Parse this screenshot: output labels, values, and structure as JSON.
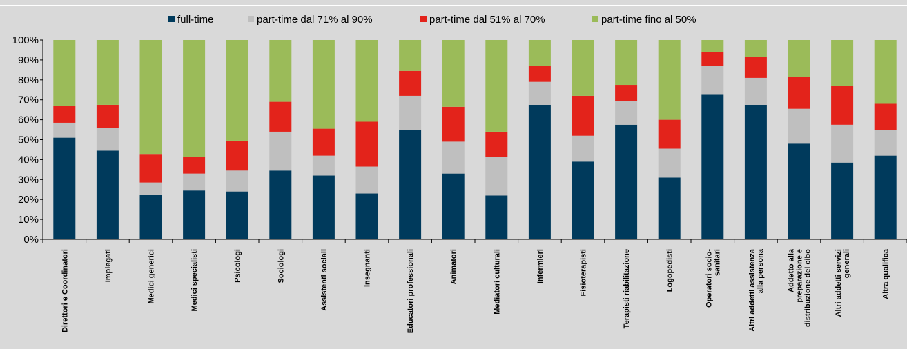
{
  "chart_data": {
    "type": "bar",
    "stacked": true,
    "orientation": "vertical",
    "ylim": [
      0,
      100
    ],
    "y_ticks": [
      "0%",
      "10%",
      "20%",
      "30%",
      "40%",
      "50%",
      "60%",
      "70%",
      "80%",
      "90%",
      "100%"
    ],
    "grid": false,
    "legend_position": "top",
    "categories": [
      [
        "Direttori e Coordinatori"
      ],
      [
        "Impiegati"
      ],
      [
        "Medici generici"
      ],
      [
        "Medici specialisti"
      ],
      [
        "Psicologi"
      ],
      [
        "Sociologi"
      ],
      [
        "Assistenti sociali"
      ],
      [
        "Insegnanti"
      ],
      [
        "Educatori professionali"
      ],
      [
        "Animatori"
      ],
      [
        "Mediatori culturali"
      ],
      [
        "Infermieri"
      ],
      [
        "Fisioterapisti"
      ],
      [
        "Terapisti riabilitazione"
      ],
      [
        "Logopedisti"
      ],
      [
        "Operatori socio-",
        "sanitari"
      ],
      [
        "Altri addetti assistenza",
        "alla persona"
      ],
      [
        "Addetto alla",
        "preparazione e",
        "distribuzione del cibo"
      ],
      [
        "Altri addetti servizi",
        "generali"
      ],
      [
        "Altra qualifica"
      ]
    ],
    "series": [
      {
        "name": "full-time",
        "color": "#003a5c",
        "values": [
          51,
          44.5,
          22.5,
          24.5,
          24,
          34.5,
          32,
          23,
          55,
          33,
          22,
          67.5,
          39,
          57.5,
          31,
          72.5,
          67.5,
          48,
          38.5,
          42
        ]
      },
      {
        "name": "part-time dal 71% al 90%",
        "color": "#bfbfbf",
        "values": [
          7.5,
          11.5,
          6,
          8.5,
          10.5,
          19.5,
          10,
          13.5,
          17,
          16,
          19.5,
          11.5,
          13,
          12,
          14.5,
          14.5,
          13.5,
          17.5,
          19,
          13
        ]
      },
      {
        "name": "part-time dal 51% al 70%",
        "color": "#e3231b",
        "values": [
          8.5,
          11.5,
          14,
          8.5,
          15,
          15,
          13.5,
          22.5,
          12.5,
          17.5,
          12.5,
          8,
          20,
          8,
          14.5,
          7,
          10.5,
          16,
          19.5,
          13
        ]
      },
      {
        "name": "part-time fino al 50%",
        "color": "#9bbb59",
        "values": [
          33,
          32.5,
          57.5,
          58.5,
          50.5,
          31,
          44.5,
          41,
          15.5,
          33.5,
          46,
          13,
          28,
          22.5,
          40,
          6,
          8.5,
          18.5,
          23,
          32
        ]
      }
    ]
  }
}
